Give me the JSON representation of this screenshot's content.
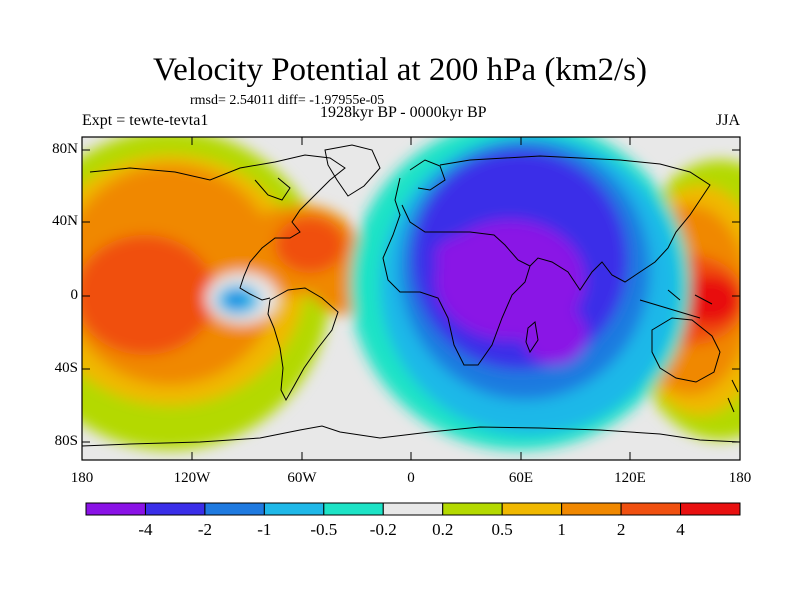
{
  "title": "Velocity Potential at 200 hPa (km2/s)",
  "stats": "rmsd= 2.54011 diff= -1.97955e-05",
  "experiment": "Expt = tewte-tevta1",
  "period": "1928kyr BP - 0000kyr BP",
  "season": "JJA",
  "lat_labels": [
    "80N",
    "40N",
    "0",
    "40S",
    "80S"
  ],
  "lon_labels": [
    "180",
    "120W",
    "60W",
    "0",
    "60E",
    "120E",
    "180"
  ],
  "colorbar": {
    "labels": [
      "-4",
      "-2",
      "-1",
      "-0.5",
      "-0.2",
      "0.2",
      "0.5",
      "1",
      "2",
      "4"
    ],
    "colors": [
      "#8a12e6",
      "#3a2ee8",
      "#1f7ae0",
      "#1fb8e8",
      "#1de3c6",
      "#e8e8e8",
      "#b4d900",
      "#f0b800",
      "#f08800",
      "#f05010",
      "#e81010"
    ]
  }
}
